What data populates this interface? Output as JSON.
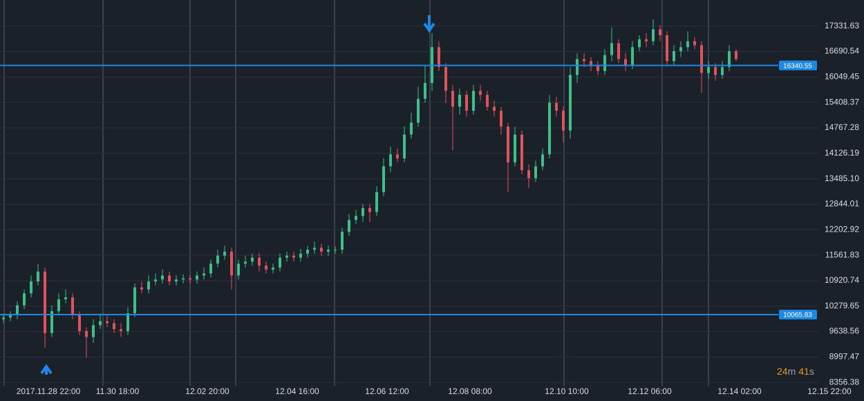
{
  "chart_data": {
    "type": "candlestick",
    "categories": [
      null,
      null,
      null,
      null,
      null,
      null,
      "2017.11.28 22:00",
      null,
      null,
      null,
      null,
      null,
      null,
      null,
      null,
      null,
      "11.30 18:00",
      null,
      null,
      null,
      null,
      null,
      null,
      null,
      null,
      null,
      null,
      null,
      null,
      "12.02 20:00",
      null,
      null,
      null,
      null,
      null,
      null,
      null,
      null,
      null,
      null,
      null,
      null,
      "12.04 16:00",
      null,
      null,
      null,
      null,
      null,
      null,
      null,
      null,
      null,
      null,
      null,
      null,
      "12.06 12:00",
      null,
      null,
      null,
      null,
      null,
      null,
      null,
      null,
      null,
      null,
      null,
      "12.08 08:00",
      null,
      null,
      null,
      null,
      null,
      null,
      null,
      null,
      null,
      null,
      null,
      null,
      null,
      "12.10 10:00",
      null,
      null,
      null,
      null,
      null,
      null,
      null,
      null,
      null,
      null,
      null,
      "12.12 06:00",
      null,
      null,
      null,
      null,
      null,
      null,
      null,
      null,
      null,
      null,
      null,
      null,
      "12.14 02:00",
      null,
      null,
      null,
      null,
      null,
      null,
      null,
      null,
      null,
      null,
      null,
      null,
      "12.15 22:00"
    ],
    "open": [
      9950,
      9990,
      10050,
      10300,
      10600,
      10900,
      11150,
      9600,
      10150,
      10450,
      10500,
      10050,
      9650,
      9500,
      9800,
      9900,
      9850,
      9700,
      9650,
      10100,
      10750,
      10700,
      10900,
      10950,
      11050,
      10900,
      10950,
      10980,
      10950,
      11050,
      11100,
      11350,
      11550,
      11650,
      11050,
      11350,
      11400,
      11500,
      11300,
      11200,
      11250,
      11500,
      11550,
      11500,
      11600,
      11700,
      11750,
      11650,
      11700,
      11700,
      12150,
      12450,
      12550,
      12750,
      12650,
      13150,
      13800,
      14100,
      14000,
      14600,
      14900,
      15500,
      15900,
      16800,
      16300,
      15700,
      15300,
      15600,
      15200,
      15700,
      15600,
      15300,
      15200,
      14800,
      13900,
      14600,
      13700,
      13500,
      13800,
      14100,
      15400,
      15200,
      14700,
      16100,
      16500,
      16450,
      16350,
      16200,
      16600,
      16900,
      16500,
      16350,
      16800,
      17000,
      16950,
      17250,
      17100,
      16450,
      16700,
      16800,
      16950,
      16850,
      16150,
      16300,
      16100,
      16300,
      16700,
      null,
      null,
      null,
      null,
      null,
      null,
      null,
      null,
      null,
      null,
      null,
      null,
      null
    ],
    "high": [
      10100,
      10150,
      10400,
      10700,
      11050,
      11340,
      11250,
      10300,
      10600,
      10700,
      10600,
      10150,
      9750,
      9950,
      10100,
      10050,
      9950,
      9850,
      10250,
      10850,
      10900,
      11050,
      11100,
      11200,
      11150,
      11050,
      11080,
      11070,
      11150,
      11250,
      11450,
      11700,
      11800,
      11750,
      11450,
      11550,
      11600,
      11620,
      11400,
      11350,
      11600,
      11650,
      11650,
      11720,
      11800,
      11900,
      11850,
      11800,
      11780,
      12250,
      12600,
      12700,
      12850,
      12850,
      13300,
      14000,
      14300,
      14250,
      14800,
      15150,
      15800,
      16350,
      17150,
      16950,
      16400,
      15850,
      15750,
      15700,
      15850,
      15850,
      15700,
      15450,
      15300,
      14900,
      14800,
      14700,
      13850,
      13950,
      14250,
      15600,
      15550,
      15300,
      16300,
      16650,
      16650,
      16550,
      16450,
      16750,
      17300,
      17000,
      16650,
      16950,
      17100,
      17150,
      17500,
      17350,
      17200,
      16850,
      16950,
      17200,
      17050,
      16950,
      16450,
      16400,
      16450,
      16850,
      16750,
      null,
      null,
      null,
      null,
      null,
      null,
      null,
      null,
      null,
      null,
      null,
      null,
      null
    ],
    "low": [
      9850,
      9900,
      9950,
      10200,
      10500,
      10800,
      9230,
      9500,
      10050,
      10350,
      9950,
      9550,
      8990,
      9350,
      9700,
      9750,
      9600,
      9500,
      9550,
      10000,
      10600,
      10600,
      10800,
      10850,
      10800,
      10800,
      10850,
      10850,
      10850,
      10950,
      11000,
      11250,
      11450,
      10700,
      10950,
      11250,
      11300,
      11150,
      11100,
      11100,
      11150,
      11400,
      11400,
      11400,
      11500,
      11600,
      11550,
      11550,
      11600,
      11600,
      12050,
      12350,
      12400,
      12400,
      12550,
      13050,
      13650,
      13900,
      13900,
      14500,
      14800,
      15400,
      15700,
      16200,
      15400,
      14200,
      15100,
      15050,
      15100,
      15450,
      15200,
      15050,
      14600,
      13150,
      13800,
      13600,
      13250,
      13400,
      13700,
      14000,
      15050,
      14400,
      14500,
      15900,
      16300,
      16200,
      16100,
      16100,
      16450,
      16400,
      16200,
      16250,
      16700,
      16800,
      16850,
      16950,
      16350,
      16350,
      16550,
      16700,
      16750,
      15650,
      16000,
      15950,
      16000,
      16200,
      16450,
      null,
      null,
      null,
      null,
      null,
      null,
      null,
      null,
      null,
      null,
      null,
      null,
      null
    ],
    "close": [
      9990,
      10050,
      10300,
      10600,
      10900,
      11150,
      9600,
      10150,
      10450,
      10500,
      10050,
      9650,
      9500,
      9800,
      9900,
      9850,
      9700,
      9650,
      10100,
      10750,
      10700,
      10900,
      10950,
      11050,
      10900,
      10950,
      10980,
      10950,
      11050,
      11100,
      11350,
      11550,
      11650,
      11050,
      11350,
      11400,
      11500,
      11300,
      11200,
      11250,
      11500,
      11550,
      11500,
      11600,
      11700,
      11750,
      11650,
      11700,
      11700,
      12150,
      12450,
      12550,
      12750,
      12650,
      13150,
      13800,
      14100,
      14000,
      14600,
      14900,
      15500,
      15900,
      16800,
      16300,
      15700,
      15300,
      15600,
      15200,
      15700,
      15600,
      15300,
      15200,
      14800,
      13900,
      14600,
      13700,
      13500,
      13800,
      14100,
      15400,
      15200,
      14700,
      16100,
      16500,
      16450,
      16350,
      16200,
      16600,
      16900,
      16500,
      16350,
      16800,
      17000,
      16950,
      17250,
      17100,
      16450,
      16700,
      16800,
      16950,
      16850,
      16150,
      16300,
      16100,
      16300,
      16700,
      16500,
      null,
      null,
      null,
      null,
      null,
      null,
      null,
      null,
      null,
      null,
      null,
      null,
      null
    ],
    "up_color": "#3dbf8a",
    "down_color": "#e0525e",
    "ylim": [
      7890,
      17988
    ],
    "yticks": [
      8356.38,
      8997.47,
      9638.56,
      10279.65,
      10920.74,
      11561.83,
      12202.92,
      12844.01,
      {
        "value": 13485.1,
        "label": "13485.10"
      },
      14126.19,
      14767.28,
      15408.37,
      16049.45,
      16690.54,
      17331.63
    ],
    "grid": true,
    "price_lines": [
      {
        "value": 16340.55,
        "color": "#1e88e5"
      },
      {
        "value": 10065.83,
        "color": "#1e88e5"
      }
    ],
    "timer": [
      "24",
      "m",
      "41",
      "s"
    ]
  }
}
